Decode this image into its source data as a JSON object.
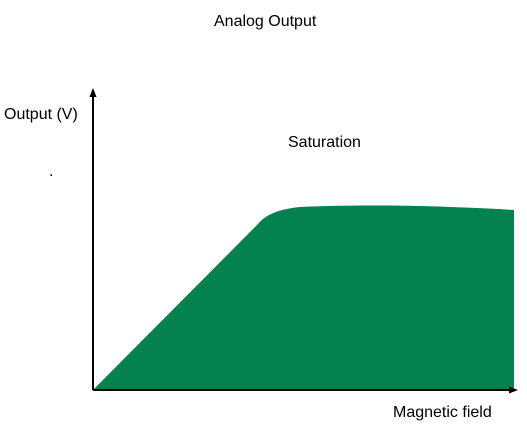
{
  "title": "Analog Output",
  "axes": {
    "y_label": "Output (V)",
    "x_label": "Magnetic field"
  },
  "annotations": {
    "region_label": "Saturation",
    "dot_mark": "."
  },
  "colors": {
    "fill": "#038250",
    "axis": "#000000",
    "background": "#ffffff"
  }
}
